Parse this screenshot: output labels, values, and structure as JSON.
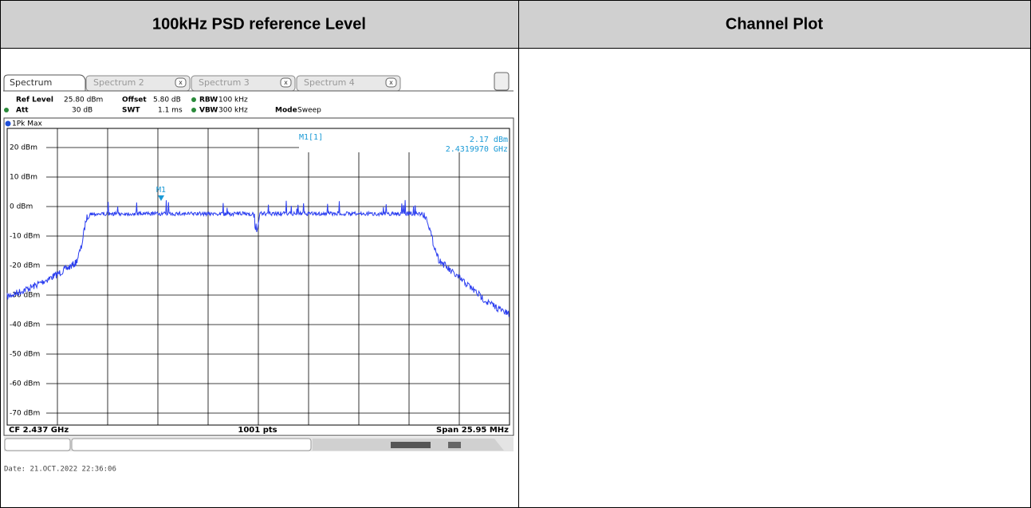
{
  "table": {
    "headers": [
      "100kHz PSD reference Level",
      "Channel Plot"
    ]
  },
  "screenshot": {
    "tabs": [
      "Spectrum",
      "Spectrum 2",
      "Spectrum 3",
      "Spectrum 4"
    ],
    "settings": [
      [
        "Ref Level",
        "25.80 dBm",
        "Offset",
        "5.80 dB",
        "RBW",
        "100 kHz"
      ],
      [
        "Att",
        "30 dB",
        "SWT",
        "1.1 ms",
        "VBW",
        "300 kHz",
        "Mode",
        "Sweep"
      ]
    ],
    "trace_label": "1Pk Max",
    "y_labels": [
      "20 dBm",
      "10 dBm",
      "0 dBm",
      "-10 dBm",
      "-20 dBm",
      "-30 dBm",
      "-40 dBm",
      "-50 dBm",
      "-60 dBm",
      "-70 dBm"
    ],
    "marker": {
      "name": "M1[1]",
      "level": "2.17 dBm",
      "frequency": "2.4319970 GHz",
      "label": "M1"
    },
    "footer": {
      "center": "CF 2.437 GHz",
      "points": "1001 pts",
      "span": "Span 25.95 MHz"
    },
    "date": "Date: 21.OCT.2022  22:36:06"
  }
}
